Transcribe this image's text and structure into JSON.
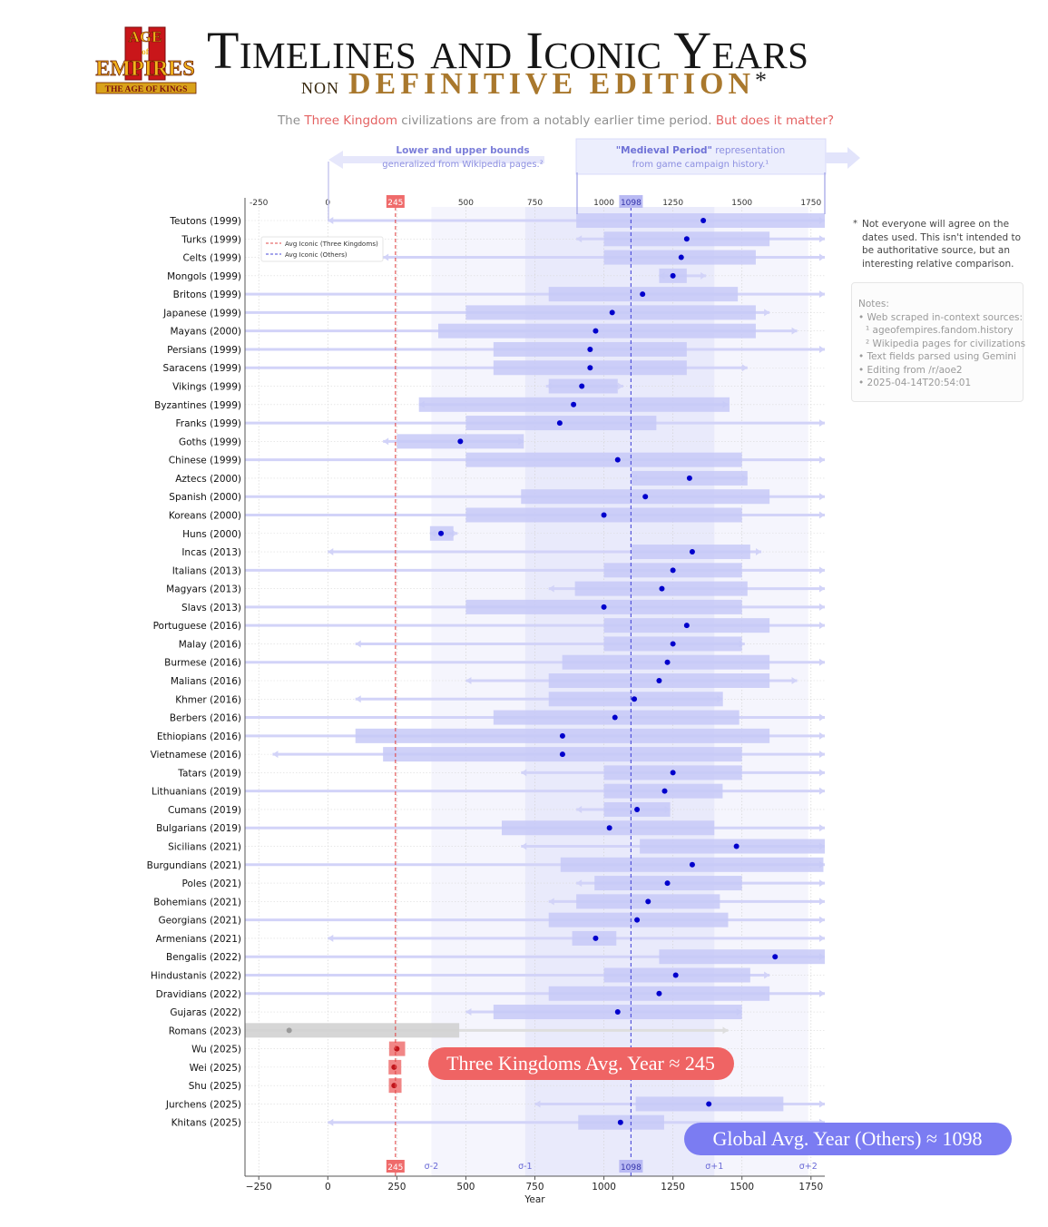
{
  "logo": {
    "line1": "AGE",
    "line2": "EMPIRES",
    "line3": "THE AGE OF KINGS",
    "numeral": "II"
  },
  "header": {
    "title": "Timelines and Iconic Years",
    "subtitle_non": "non",
    "subtitle_edition": "DEFINITIVE EDITION",
    "subtitle_asterisk": "*",
    "tagline_1": "The ",
    "tagline_hl1": "Three Kingdom",
    "tagline_2": " civilizations are from a notably earlier time period. ",
    "tagline_hl2": "But does it matter?"
  },
  "annotations": {
    "lower_upper_title": "Lower and upper bounds",
    "lower_upper_sub": "generalized from Wikipedia pages.²",
    "medieval_title": "\"Medieval Period\"",
    "medieval_title_rest": " representation",
    "medieval_sub": "from game campaign history.¹",
    "three_kingdoms_badge": "Three Kingdoms Avg. Year ≈ 245",
    "global_badge": "Global Avg. Year (Others) ≈ 1098"
  },
  "footnote": {
    "star": "*",
    "text": "Not everyone will agree on the dates used. This isn't intended to be authoritative source, but an interesting relative comparison."
  },
  "notes": {
    "title": "Notes:",
    "line1": "• Web scraped in-context sources:",
    "line2": "¹ ageofempires.fandom.history",
    "line3": "² Wikipedia pages for civilizations",
    "line4": "• Text fields parsed using Gemini",
    "line5": "• Editing from /r/aoe2",
    "line6": "• 2025-04-14T20:54:01"
  },
  "colors": {
    "blue": "#0000cc",
    "period_fill": "#c7c9f7",
    "bounds_fill": "#dcdcf9",
    "red": "#e05a5a",
    "red_fill": "#f08080",
    "gray": "#b8b8b8",
    "global_badge": "#7b7cf2",
    "tk_badge": "#ef6464"
  },
  "chart_data": {
    "type": "range-dot",
    "xlabel": "Year",
    "xlim": [
      -300,
      1800
    ],
    "x_ticks": [
      -250,
      0,
      250,
      500,
      750,
      1000,
      1250,
      1500,
      1750
    ],
    "x_tick_labels": [
      "−250",
      "0",
      "250",
      "500",
      "750",
      "1000",
      "1250",
      "1500",
      "1750"
    ],
    "top_tick_labels": [
      "-250",
      "0",
      "245",
      "500",
      "750",
      "1000",
      "1098",
      "1250",
      "1500",
      "1750"
    ],
    "sigma_labels": [
      {
        "label": "σ-2",
        "x": 375
      },
      {
        "label": "σ-1",
        "x": 715
      },
      {
        "label": "σ+1",
        "x": 1400
      },
      {
        "label": "σ+2",
        "x": 1740
      }
    ],
    "sigma_bands": {
      "outer": [
        375,
        1740
      ],
      "inner": [
        715,
        1400
      ]
    },
    "ref_lines": [
      {
        "name": "Avg Iconic (Three Kingdoms)",
        "value": 245,
        "label": "245"
      },
      {
        "name": "Avg Iconic (Others)",
        "value": 1098,
        "label": "1098"
      }
    ],
    "legend": [
      "Avg Iconic (Three Kingdoms)",
      "Avg Iconic (Others)"
    ],
    "rows": [
      {
        "label": "Teutons (1999)",
        "bounds": [
          0,
          1800
        ],
        "period": [
          900,
          1800
        ],
        "iconic": 1360
      },
      {
        "label": "Turks (1999)",
        "bounds": [
          900,
          1800
        ],
        "period": [
          1000,
          1600
        ],
        "iconic": 1300
      },
      {
        "label": "Celts (1999)",
        "bounds": [
          200,
          1800
        ],
        "period": [
          1000,
          1550
        ],
        "iconic": 1280
      },
      {
        "label": "Mongols (1999)",
        "bounds": [
          1200,
          1370
        ],
        "period": [
          1200,
          1300
        ],
        "iconic": 1250
      },
      {
        "label": "Britons (1999)",
        "bounds": [
          -300,
          1800
        ],
        "period": [
          800,
          1485
        ],
        "iconic": 1140
      },
      {
        "label": "Japanese (1999)",
        "bounds": [
          -300,
          1600
        ],
        "period": [
          500,
          1550
        ],
        "iconic": 1030
      },
      {
        "label": "Mayans (2000)",
        "bounds": [
          -300,
          1700
        ],
        "period": [
          400,
          1550
        ],
        "iconic": 970
      },
      {
        "label": "Persians (1999)",
        "bounds": [
          -300,
          1800
        ],
        "period": [
          600,
          1300
        ],
        "iconic": 950
      },
      {
        "label": "Saracens (1999)",
        "bounds": [
          -300,
          1520
        ],
        "period": [
          600,
          1300
        ],
        "iconic": 950
      },
      {
        "label": "Vikings (1999)",
        "bounds": [
          790,
          1070
        ],
        "period": [
          800,
          1050
        ],
        "iconic": 920
      },
      {
        "label": "Byzantines (1999)",
        "bounds": [
          330,
          1450
        ],
        "period": [
          330,
          1455
        ],
        "iconic": 890
      },
      {
        "label": "Franks (1999)",
        "bounds": [
          -300,
          1800
        ],
        "period": [
          500,
          1190
        ],
        "iconic": 840
      },
      {
        "label": "Goths (1999)",
        "bounds": [
          200,
          710
        ],
        "period": [
          250,
          710
        ],
        "iconic": 480
      },
      {
        "label": "Chinese (1999)",
        "bounds": [
          -300,
          1800
        ],
        "period": [
          500,
          1500
        ],
        "iconic": 1050
      },
      {
        "label": "Aztecs (2000)",
        "bounds": [
          1100,
          1520
        ],
        "period": [
          1100,
          1520
        ],
        "iconic": 1310
      },
      {
        "label": "Spanish (2000)",
        "bounds": [
          -300,
          1800
        ],
        "period": [
          700,
          1600
        ],
        "iconic": 1150
      },
      {
        "label": "Koreans (2000)",
        "bounds": [
          -300,
          1800
        ],
        "period": [
          500,
          1500
        ],
        "iconic": 1000
      },
      {
        "label": "Huns (2000)",
        "bounds": [
          370,
          470
        ],
        "period": [
          370,
          455
        ],
        "iconic": 410
      },
      {
        "label": "Incas (2013)",
        "bounds": [
          0,
          1570
        ],
        "period": [
          1100,
          1530
        ],
        "iconic": 1320
      },
      {
        "label": "Italians (2013)",
        "bounds": [
          -300,
          1800
        ],
        "period": [
          1000,
          1500
        ],
        "iconic": 1250
      },
      {
        "label": "Magyars (2013)",
        "bounds": [
          800,
          1800
        ],
        "period": [
          895,
          1520
        ],
        "iconic": 1210
      },
      {
        "label": "Slavs (2013)",
        "bounds": [
          -300,
          1800
        ],
        "period": [
          500,
          1500
        ],
        "iconic": 1000
      },
      {
        "label": "Portuguese (2016)",
        "bounds": [
          -300,
          1800
        ],
        "period": [
          1000,
          1600
        ],
        "iconic": 1300
      },
      {
        "label": "Malay (2016)",
        "bounds": [
          100,
          1510
        ],
        "period": [
          1000,
          1500
        ],
        "iconic": 1250
      },
      {
        "label": "Burmese (2016)",
        "bounds": [
          -300,
          1800
        ],
        "period": [
          849,
          1600
        ],
        "iconic": 1230
      },
      {
        "label": "Malians (2016)",
        "bounds": [
          500,
          1700
        ],
        "period": [
          800,
          1600
        ],
        "iconic": 1200
      },
      {
        "label": "Khmer (2016)",
        "bounds": [
          100,
          1430
        ],
        "period": [
          800,
          1431
        ],
        "iconic": 1110
      },
      {
        "label": "Berbers (2016)",
        "bounds": [
          -300,
          1800
        ],
        "period": [
          600,
          1490
        ],
        "iconic": 1040
      },
      {
        "label": "Ethiopians (2016)",
        "bounds": [
          -300,
          1800
        ],
        "period": [
          100,
          1600
        ],
        "iconic": 850
      },
      {
        "label": "Vietnamese (2016)",
        "bounds": [
          -200,
          1800
        ],
        "period": [
          200,
          1500
        ],
        "iconic": 850
      },
      {
        "label": "Tatars (2019)",
        "bounds": [
          700,
          1800
        ],
        "period": [
          1000,
          1500
        ],
        "iconic": 1250
      },
      {
        "label": "Lithuanians (2019)",
        "bounds": [
          -300,
          1800
        ],
        "period": [
          1000,
          1430
        ],
        "iconic": 1220
      },
      {
        "label": "Cumans (2019)",
        "bounds": [
          900,
          1240
        ],
        "period": [
          1000,
          1240
        ],
        "iconic": 1120
      },
      {
        "label": "Bulgarians (2019)",
        "bounds": [
          -300,
          1800
        ],
        "period": [
          630,
          1400
        ],
        "iconic": 1020
      },
      {
        "label": "Sicilians (2021)",
        "bounds": [
          700,
          1800
        ],
        "period": [
          1130,
          1800
        ],
        "iconic": 1480
      },
      {
        "label": "Burgundians (2021)",
        "bounds": [
          -300,
          1800
        ],
        "period": [
          843,
          1795
        ],
        "iconic": 1320
      },
      {
        "label": "Poles (2021)",
        "bounds": [
          900,
          1800
        ],
        "period": [
          966,
          1500
        ],
        "iconic": 1230
      },
      {
        "label": "Bohemians (2021)",
        "bounds": [
          800,
          1800
        ],
        "period": [
          900,
          1420
        ],
        "iconic": 1160
      },
      {
        "label": "Georgians (2021)",
        "bounds": [
          -300,
          1800
        ],
        "period": [
          800,
          1450
        ],
        "iconic": 1120
      },
      {
        "label": "Armenians (2021)",
        "bounds": [
          0,
          1800
        ],
        "period": [
          885,
          1045
        ],
        "iconic": 970
      },
      {
        "label": "Bengalis (2022)",
        "bounds": [
          -300,
          1800
        ],
        "period": [
          1200,
          1800
        ],
        "iconic": 1620
      },
      {
        "label": "Hindustanis (2022)",
        "bounds": [
          -300,
          1600
        ],
        "period": [
          1000,
          1530
        ],
        "iconic": 1260
      },
      {
        "label": "Dravidians (2022)",
        "bounds": [
          -300,
          1800
        ],
        "period": [
          800,
          1600
        ],
        "iconic": 1200
      },
      {
        "label": "Gujaras (2022)",
        "bounds": [
          500,
          1500
        ],
        "period": [
          600,
          1500
        ],
        "iconic": 1050
      },
      {
        "label": "Romans (2023)",
        "bounds": [
          -300,
          1450
        ],
        "period": [
          -300,
          476
        ],
        "iconic": -140,
        "style": "gray"
      },
      {
        "label": "Wu (2025)",
        "bounds": [
          220,
          280
        ],
        "period": [
          222,
          280
        ],
        "iconic": 250,
        "style": "red"
      },
      {
        "label": "Wei (2025)",
        "bounds": [
          220,
          266
        ],
        "period": [
          220,
          266
        ],
        "iconic": 240,
        "style": "red"
      },
      {
        "label": "Shu (2025)",
        "bounds": [
          221,
          263
        ],
        "period": [
          221,
          263
        ],
        "iconic": 240,
        "style": "red"
      },
      {
        "label": "Jurchens (2025)",
        "bounds": [
          750,
          1800
        ],
        "period": [
          1115,
          1650
        ],
        "iconic": 1380
      },
      {
        "label": "Khitans (2025)",
        "bounds": [
          0,
          1800
        ],
        "period": [
          907,
          1218
        ],
        "iconic": 1060
      }
    ]
  }
}
